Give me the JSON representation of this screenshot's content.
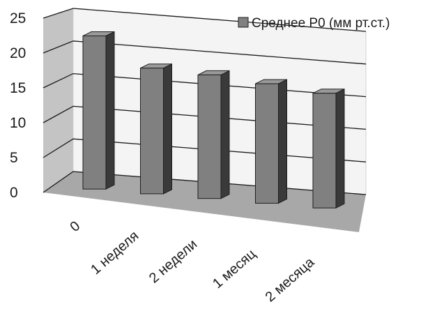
{
  "chart_data": {
    "type": "bar",
    "style": "3d-column",
    "categories": [
      "0",
      "1 неделя",
      "2 недели",
      "1 месяц",
      "2 месяца"
    ],
    "series": [
      {
        "name": "Среднее Р0 (мм рт.ст.)",
        "values": [
          22.3,
          18.3,
          18.0,
          17.4,
          16.7
        ]
      }
    ],
    "ylim": [
      0,
      25
    ],
    "yticks": [
      "0",
      "5",
      "10",
      "15",
      "20",
      "25"
    ],
    "grid": true,
    "legend": "top-right",
    "colors": {
      "bar_front": "#808080",
      "bar_side": "#3a3a3a",
      "bar_top": "#9a9a9a",
      "back_wall": "#f4f4f4",
      "side_wall": "#c4c4c4",
      "floor": "#a8a8a8",
      "grid": "#1a1a1a"
    }
  }
}
